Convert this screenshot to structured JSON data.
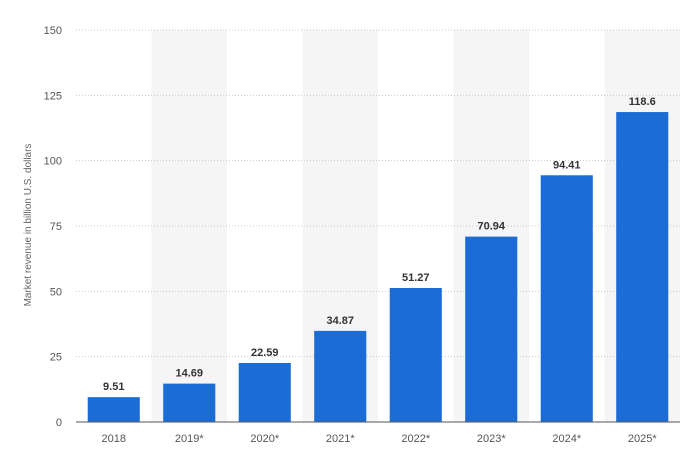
{
  "chart_data": {
    "type": "bar",
    "categories": [
      "2018",
      "2019*",
      "2020*",
      "2021*",
      "2022*",
      "2023*",
      "2024*",
      "2025*"
    ],
    "values": [
      9.51,
      14.69,
      22.59,
      34.87,
      51.27,
      70.94,
      94.41,
      118.6
    ],
    "value_labels": [
      "9.51",
      "14.69",
      "22.59",
      "34.87",
      "51.27",
      "70.94",
      "94.41",
      "118.6"
    ],
    "ylabel": "Market revenue in billion U.S. dollars",
    "xlabel": "",
    "ylim": [
      0,
      150
    ],
    "yticks": [
      0,
      25,
      50,
      75,
      100,
      125,
      150
    ],
    "ytick_labels": [
      "0",
      "25",
      "50",
      "75",
      "100",
      "125",
      "150"
    ],
    "grid": true,
    "colors": {
      "bar": "#1b6dd5",
      "band": "#f5f5f5",
      "grid": "#c8c8c8"
    }
  }
}
